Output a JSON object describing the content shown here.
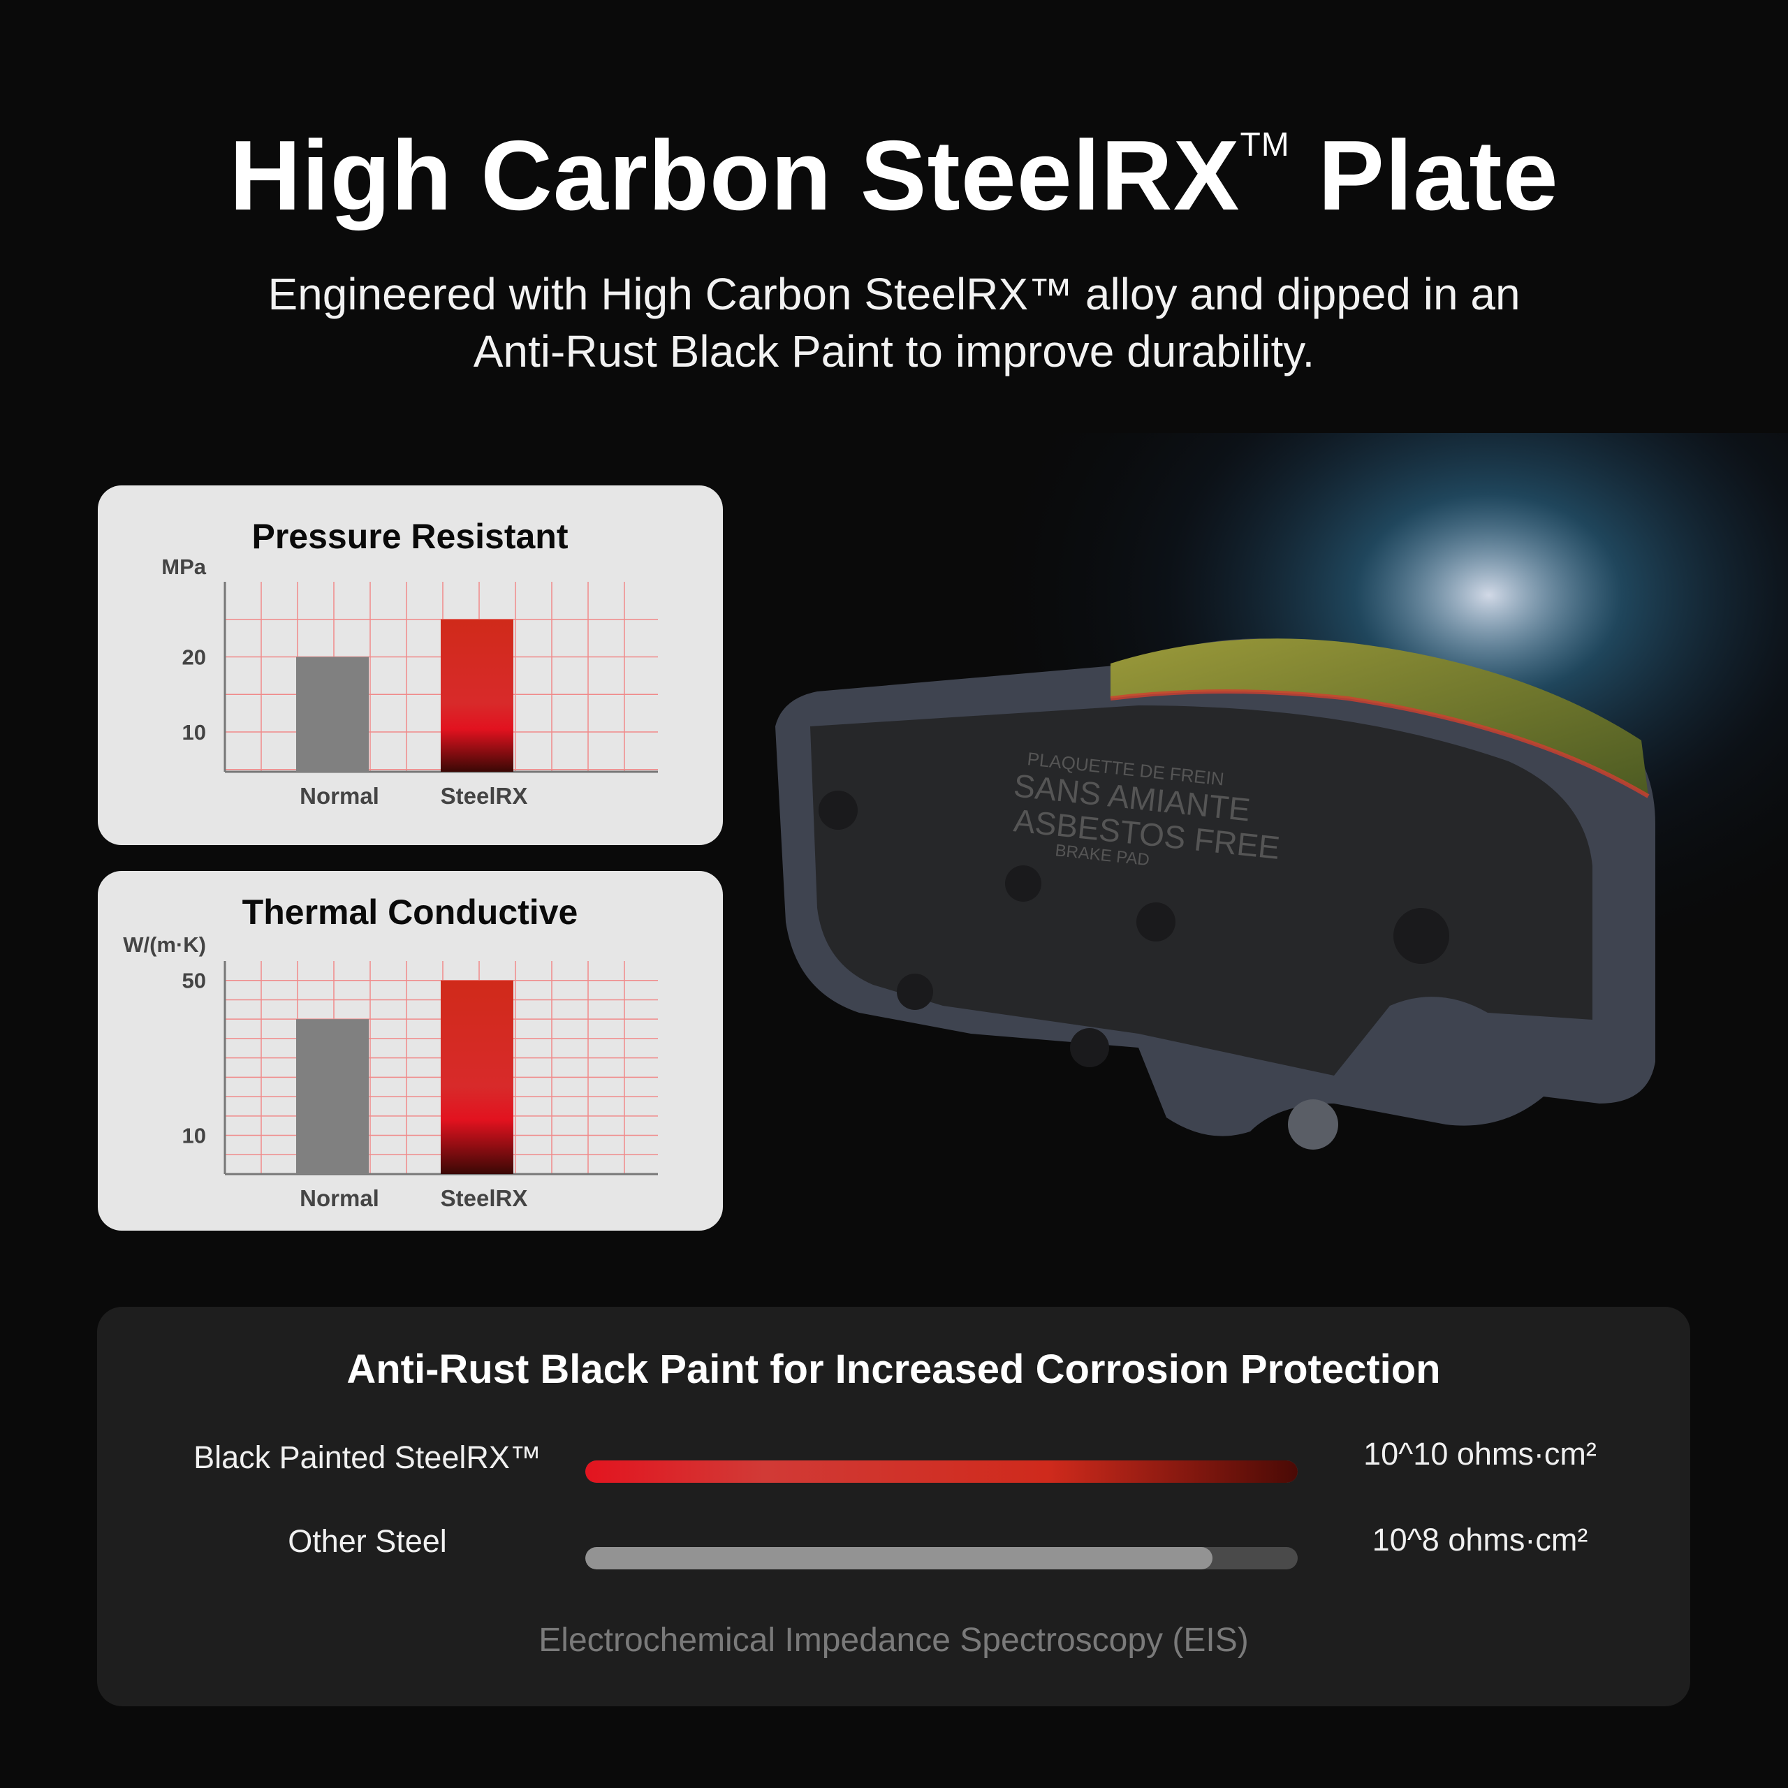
{
  "header": {
    "title": "High Carbon SteelRX",
    "title_mark": "TM",
    "title_suffix": "Plate",
    "subtitle_line1": "Engineered with High Carbon SteelRX™ alloy and dipped in an",
    "subtitle_line2": "Anti-Rust Black Paint to improve durability."
  },
  "product_image": {
    "imprint": [
      "PLAQUETTE DE FREIN",
      "SANS AMIANTE",
      "ASBESTOS FREE",
      "BRAKE PAD"
    ]
  },
  "chart_data": [
    {
      "type": "bar",
      "title": "Pressure Resistant",
      "ylabel": "MPa",
      "categories": [
        "Normal",
        "SteelRX"
      ],
      "values": [
        20,
        25
      ],
      "ylim": [
        4.7,
        30
      ],
      "yticks": [
        10,
        20
      ],
      "grid": true,
      "colors": [
        "#808080",
        "#d42a1e"
      ]
    },
    {
      "type": "bar",
      "title": "Thermal Conductive",
      "ylabel": "W/(m·K)",
      "categories": [
        "Normal",
        "SteelRX"
      ],
      "values": [
        40,
        50
      ],
      "ylim": [
        0,
        55
      ],
      "yticks": [
        10,
        50
      ],
      "grid": true,
      "colors": [
        "#808080",
        "#d42a1e"
      ]
    }
  ],
  "corrosion": {
    "title": "Anti-Rust Black Paint for Increased Corrosion Protection",
    "rows": [
      {
        "label": "Black Painted SteelRX™",
        "value": "10^10 ohms·cm²",
        "fill": 1.0,
        "color": "#e3141f"
      },
      {
        "label": "Other Steel",
        "value": "10^8 ohms·cm²",
        "fill": 0.88,
        "color": "#939393"
      }
    ],
    "footnote": "Electrochemical Impedance Spectroscopy (EIS)"
  }
}
